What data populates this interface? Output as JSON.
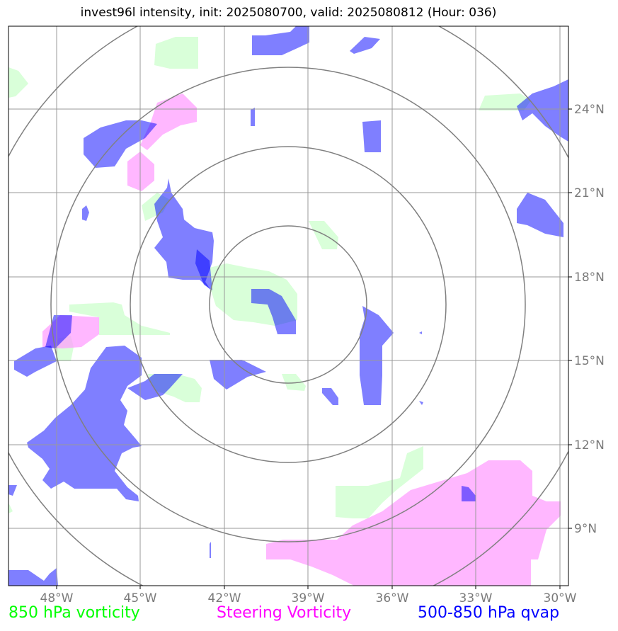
{
  "title": "invest96l intensity, init: 2025080700, valid: 2025080812 (Hour: 036)",
  "lon_labels": [
    "48°W",
    "45°W",
    "42°W",
    "39°W",
    "36°W",
    "33°W",
    "30°W"
  ],
  "lat_labels": [
    "24°N",
    "21°N",
    "18°N",
    "15°N",
    "12°N",
    "9°N"
  ],
  "legend": {
    "vort850": {
      "label": "850 hPa vorticity",
      "color": "#00ff00"
    },
    "steering": {
      "label": "Steering Vorticity",
      "color": "#ff00ff"
    },
    "qvap": {
      "label": "500-850 hPa qvap",
      "color": "#0000ff"
    }
  },
  "colors": {
    "green_fill": "#ccffcc",
    "pink_fill": "#ff99ff",
    "blue_fill": "#0000ff",
    "grid": "#999999",
    "rings": "#808080"
  }
}
